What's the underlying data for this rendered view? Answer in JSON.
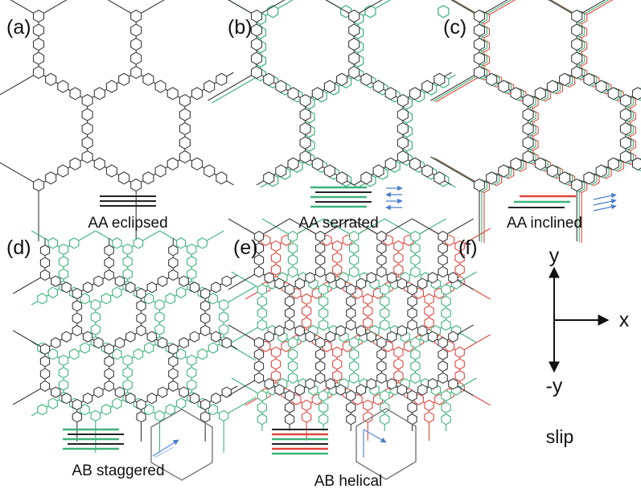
{
  "colors": {
    "black": "#3a3a3a",
    "green": "#3cb37a",
    "red": "#e0463f",
    "blue": "#4a7ec9",
    "gray": "#9a9a9a"
  },
  "panels": [
    {
      "id": "a",
      "letter": "(a)",
      "caption": "AA eclipsed",
      "layers": [
        "black"
      ]
    },
    {
      "id": "b",
      "letter": "(b)",
      "caption": "AA serrated",
      "layers": [
        "black",
        "green"
      ]
    },
    {
      "id": "c",
      "letter": "(c)",
      "caption": "AA inclined",
      "layers": [
        "black",
        "green",
        "red"
      ]
    },
    {
      "id": "d",
      "letter": "(d)",
      "caption": "AB staggered",
      "layers": [
        "black",
        "green"
      ]
    },
    {
      "id": "e",
      "letter": "(e)",
      "caption": "AB helical",
      "layers": [
        "black",
        "green",
        "red"
      ]
    },
    {
      "id": "f",
      "letter": "(f)",
      "caption": "slip"
    }
  ],
  "axes": {
    "y_up": "y",
    "x_right": "x",
    "y_down": "-y"
  }
}
